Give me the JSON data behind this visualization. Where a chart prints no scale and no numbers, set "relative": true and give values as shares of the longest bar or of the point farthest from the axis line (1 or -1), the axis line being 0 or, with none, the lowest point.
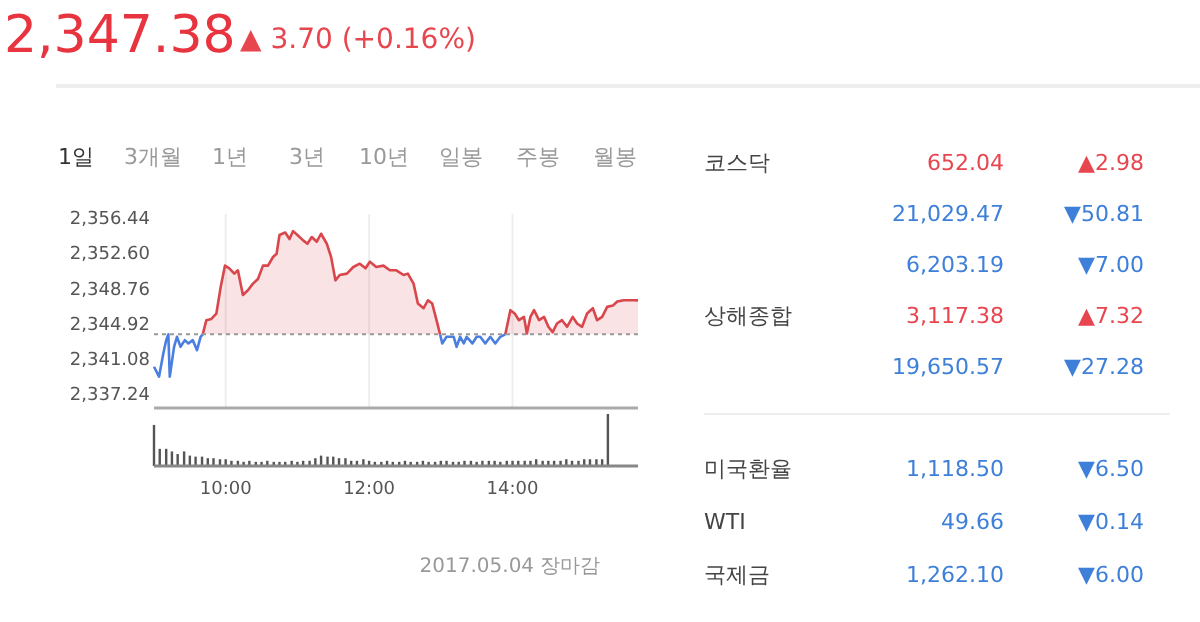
{
  "chart_data": [
    {
      "type": "line",
      "title": "2,347.38",
      "subtitle": "▲ 3.70 (+0.16%)",
      "annotations": [
        "1일",
        "3개월",
        "1년",
        "3년",
        "10년",
        "일봉",
        "주봉",
        "월봉"
      ],
      "xlim": [
        9,
        15.75
      ],
      "xticks": [
        10,
        12,
        14
      ],
      "tick_labels": "y",
      "grid": "x",
      "ylim": [
        2335.66,
        2356.78
      ],
      "yticks": [
        {
          "value": 2337.24,
          "label": "2,337.24"
        },
        {
          "value": 2341.08,
          "label": "2,341.08"
        },
        {
          "value": 2344.92,
          "label": "2,344.92"
        },
        {
          "value": 2348.76,
          "label": "2,348.76"
        },
        {
          "value": 2352.6,
          "label": "2,352.60"
        },
        {
          "value": 2356.44,
          "label": "2,356.44"
        }
      ],
      "ref_lines": [
        {
          "axis": "y",
          "value": 2343.68,
          "color": "#999999",
          "line_style": "dotted"
        }
      ],
      "series": [
        {
          "type": "line",
          "color": "#4a7fe0",
          "x": [
            9,
            9.07,
            9.13,
            9.17,
            9.2,
            9.22,
            9.28,
            9.32,
            9.37,
            9.43,
            9.48,
            9.54,
            9.6,
            9.65,
            9.68,
            11,
            12.99,
            13.02,
            13.08,
            13.18,
            13.22,
            13.27,
            13.32,
            13.36,
            13.44,
            13.5,
            13.55,
            13.62,
            13.69,
            13.76,
            13.83,
            13.9
          ],
          "values": [
            2340.15,
            2339.07,
            2341.6,
            2343.05,
            2343.68,
            2339.07,
            2342.32,
            2343.41,
            2342.32,
            2343.05,
            2342.69,
            2343.05,
            2341.96,
            2343.41,
            2343.68,
            null,
            2343.68,
            2342.69,
            2343.41,
            2343.41,
            2342.32,
            2343.41,
            2342.69,
            2343.41,
            2342.69,
            2343.41,
            2343.41,
            2342.69,
            2343.41,
            2342.69,
            2343.41,
            2343.68
          ]
        },
        {
          "type": "area",
          "color": "#d9464b",
          "x": [
            9.68,
            9.73,
            9.8,
            9.87,
            9.93,
            9.99,
            10.05,
            10.12,
            10.17,
            10.24,
            10.31,
            10.38,
            10.45,
            10.52,
            10.59,
            10.66,
            10.71,
            10.75,
            10.83,
            10.89,
            10.94,
            11,
            11.08,
            11.14,
            11.2,
            11.27,
            11.33,
            11.41,
            11.47,
            11.53,
            11.59,
            11.69,
            11.78,
            11.87,
            11.95,
            12.01,
            12.1,
            12.2,
            12.29,
            12.38,
            12.48,
            12.54,
            12.62,
            12.68,
            12.76,
            12.82,
            12.88,
            12.94,
            12.99,
            13.5,
            13.9,
            13.97,
            14.03,
            14.09,
            14.16,
            14.2,
            14.25,
            14.3,
            14.37,
            14.44,
            14.5,
            14.56,
            14.62,
            14.69,
            14.76,
            14.84,
            14.9,
            14.97,
            15.04,
            15.12,
            15.18,
            15.25,
            15.32,
            15.4,
            15.46,
            15.55,
            15.69,
            15.75
          ],
          "values": [
            2343.68,
            2345.22,
            2345.36,
            2345.94,
            2348.84,
            2351.16,
            2350.87,
            2350.29,
            2350.65,
            2347.97,
            2348.48,
            2349.2,
            2349.71,
            2351.16,
            2351.16,
            2352.1,
            2352.46,
            2354.49,
            2354.77,
            2354.05,
            2354.92,
            2354.49,
            2353.91,
            2353.54,
            2354.27,
            2353.76,
            2354.63,
            2353.54,
            2352.1,
            2349.56,
            2350.14,
            2350.29,
            2351.01,
            2351.37,
            2350.87,
            2351.59,
            2351.01,
            2351.16,
            2350.65,
            2350.65,
            2350.14,
            2350.29,
            2349.2,
            2347.03,
            2346.52,
            2347.39,
            2347.03,
            2345.22,
            2343.68,
            null,
            2343.68,
            2346.31,
            2345.94,
            2345.22,
            2345.58,
            2343.77,
            2345.58,
            2346.31,
            2345.22,
            2345.58,
            2344.5,
            2343.92,
            2344.86,
            2345.22,
            2344.5,
            2345.58,
            2344.86,
            2344.5,
            2345.94,
            2346.52,
            2345.22,
            2345.58,
            2346.67,
            2346.81,
            2347.25,
            2347.39,
            2347.39,
            2347.38
          ]
        }
      ]
    },
    {
      "type": "bar",
      "relative": true,
      "color": "#555555",
      "annotations": [
        "2017.05.04 장마감"
      ],
      "xlim": [
        9,
        15.75
      ],
      "xticks": [
        {
          "value": 10,
          "label": "10:00"
        },
        {
          "value": 12,
          "label": "12:00"
        },
        {
          "value": 14,
          "label": "14:00"
        }
      ],
      "x": [
        9,
        9.08,
        9.17,
        9.25,
        9.33,
        9.42,
        9.5,
        9.58,
        9.67,
        9.75,
        9.83,
        9.92,
        10,
        10.08,
        10.17,
        10.25,
        10.33,
        10.42,
        10.5,
        10.58,
        10.67,
        10.75,
        10.83,
        10.92,
        11,
        11.08,
        11.17,
        11.25,
        11.33,
        11.42,
        11.5,
        11.58,
        11.67,
        11.75,
        11.83,
        11.92,
        12,
        12.08,
        12.17,
        12.25,
        12.33,
        12.42,
        12.5,
        12.58,
        12.67,
        12.75,
        12.83,
        12.92,
        13,
        13.08,
        13.17,
        13.25,
        13.33,
        13.42,
        13.5,
        13.58,
        13.67,
        13.75,
        13.83,
        13.92,
        14,
        14.08,
        14.17,
        14.25,
        14.33,
        14.42,
        14.5,
        14.58,
        14.67,
        14.75,
        14.83,
        14.92,
        15,
        15.08,
        15.17,
        15.25,
        15.33
      ],
      "values": [
        0.79,
        0.33,
        0.33,
        0.28,
        0.23,
        0.28,
        0.2,
        0.18,
        0.18,
        0.15,
        0.15,
        0.13,
        0.13,
        0.1,
        0.1,
        0.08,
        0.1,
        0.08,
        0.08,
        0.1,
        0.08,
        0.08,
        0.08,
        0.1,
        0.08,
        0.1,
        0.1,
        0.15,
        0.2,
        0.18,
        0.18,
        0.15,
        0.15,
        0.1,
        0.1,
        0.13,
        0.1,
        0.08,
        0.08,
        0.1,
        0.08,
        0.08,
        0.1,
        0.08,
        0.08,
        0.1,
        0.08,
        0.08,
        0.1,
        0.1,
        0.08,
        0.08,
        0.1,
        0.1,
        0.08,
        0.1,
        0.1,
        0.1,
        0.08,
        0.1,
        0.1,
        0.1,
        0.1,
        0.1,
        0.13,
        0.1,
        0.1,
        0.1,
        0.1,
        0.13,
        0.1,
        0.1,
        0.13,
        0.13,
        0.13,
        0.13,
        1
      ]
    },
    {
      "type": "other",
      "categories": [
        "코스닥",
        null,
        null,
        "상해종합",
        null,
        "미국환율",
        "WTI",
        "국제금"
      ],
      "annotations": [
        "652.04",
        "▲2.98",
        "21,029.47",
        "▼50.81",
        "6,203.19",
        "▼7.00",
        "3,117.38",
        "▲7.32",
        "19,650.57",
        "▼27.28",
        "1,118.50",
        "▼6.50",
        "49.66",
        "▼0.14",
        "1,262.10",
        "▼6.00"
      ],
      "colors": [
        "#e8464f",
        "#3d7fd9",
        "#3d7fd9",
        "#e8464f",
        "#3d7fd9",
        "#3d7fd9",
        "#3d7fd9",
        "#3d7fd9"
      ]
    }
  ]
}
